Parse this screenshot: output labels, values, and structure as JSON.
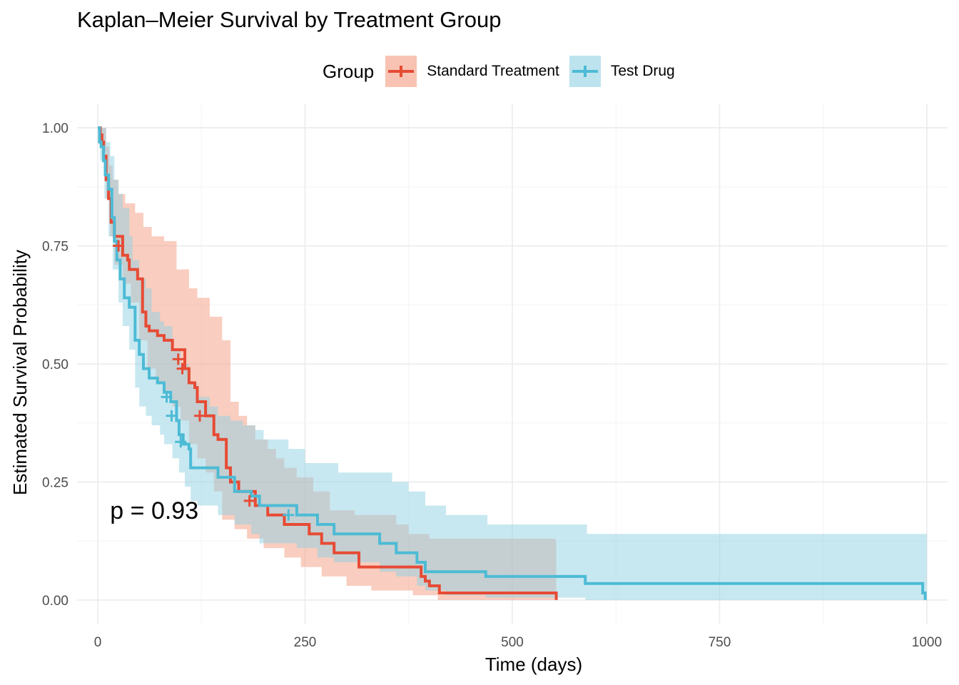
{
  "chart_data": {
    "type": "line",
    "subtype": "kaplan-meier step curves with confidence bands",
    "title": "Kaplan–Meier Survival by Treatment Group",
    "xlabel": "Time (days)",
    "ylabel": "Estimated Survival Probability",
    "xlim": [
      -25,
      1025
    ],
    "ylim": [
      -0.05,
      1.05
    ],
    "x_ticks": [
      0,
      250,
      500,
      750,
      1000
    ],
    "x_tick_labels": [
      "0",
      "250",
      "500",
      "750",
      "1000"
    ],
    "y_ticks": [
      0,
      0.25,
      0.5,
      0.75,
      1
    ],
    "y_tick_labels": [
      "0.00",
      "0.25",
      "0.50",
      "0.75",
      "1.00"
    ],
    "grid": true,
    "legend": {
      "title": "Group",
      "position": "top"
    },
    "annotation": {
      "text": "p = 0.93",
      "x": 20,
      "y": 0.19
    },
    "series": [
      {
        "name": "Standard Treatment",
        "color": "#E64B35",
        "band_color": "#F39B7F",
        "steps": [
          [
            0,
            1.0
          ],
          [
            3,
            0.985
          ],
          [
            5,
            0.97
          ],
          [
            7,
            0.94
          ],
          [
            10,
            0.89
          ],
          [
            13,
            0.85
          ],
          [
            16,
            0.8
          ],
          [
            20,
            0.77
          ],
          [
            30,
            0.73
          ],
          [
            36,
            0.72
          ],
          [
            38,
            0.7
          ],
          [
            48,
            0.68
          ],
          [
            54,
            0.61
          ],
          [
            58,
            0.58
          ],
          [
            62,
            0.57
          ],
          [
            72,
            0.56
          ],
          [
            80,
            0.55
          ],
          [
            90,
            0.53
          ],
          [
            105,
            0.49
          ],
          [
            110,
            0.46
          ],
          [
            117,
            0.45
          ],
          [
            120,
            0.42
          ],
          [
            130,
            0.39
          ],
          [
            140,
            0.35
          ],
          [
            145,
            0.34
          ],
          [
            155,
            0.28
          ],
          [
            160,
            0.25
          ],
          [
            170,
            0.23
          ],
          [
            190,
            0.2
          ],
          [
            205,
            0.18
          ],
          [
            225,
            0.16
          ],
          [
            255,
            0.14
          ],
          [
            270,
            0.12
          ],
          [
            285,
            0.1
          ],
          [
            315,
            0.07
          ],
          [
            390,
            0.05
          ],
          [
            395,
            0.04
          ],
          [
            400,
            0.03
          ],
          [
            412,
            0.015
          ],
          [
            552,
            0.015
          ],
          [
            553,
            0.0
          ]
        ],
        "upper": [
          [
            0,
            1.0
          ],
          [
            5,
            1.0
          ],
          [
            10,
            0.96
          ],
          [
            14,
            0.92
          ],
          [
            18,
            0.89
          ],
          [
            25,
            0.86
          ],
          [
            33,
            0.84
          ],
          [
            45,
            0.82
          ],
          [
            55,
            0.79
          ],
          [
            65,
            0.77
          ],
          [
            80,
            0.76
          ],
          [
            95,
            0.7
          ],
          [
            110,
            0.66
          ],
          [
            120,
            0.64
          ],
          [
            135,
            0.6
          ],
          [
            150,
            0.55
          ],
          [
            160,
            0.42
          ],
          [
            170,
            0.39
          ],
          [
            180,
            0.37
          ],
          [
            190,
            0.34
          ],
          [
            205,
            0.32
          ],
          [
            215,
            0.3
          ],
          [
            225,
            0.28
          ],
          [
            240,
            0.26
          ],
          [
            260,
            0.23
          ],
          [
            280,
            0.19
          ],
          [
            310,
            0.18
          ],
          [
            360,
            0.16
          ],
          [
            375,
            0.14
          ],
          [
            400,
            0.13
          ],
          [
            552,
            0.125
          ],
          [
            553,
            0.0
          ]
        ],
        "lower": [
          [
            0,
            1.0
          ],
          [
            5,
            0.95
          ],
          [
            10,
            0.85
          ],
          [
            15,
            0.77
          ],
          [
            20,
            0.71
          ],
          [
            30,
            0.67
          ],
          [
            40,
            0.63
          ],
          [
            50,
            0.55
          ],
          [
            60,
            0.49
          ],
          [
            70,
            0.46
          ],
          [
            80,
            0.44
          ],
          [
            90,
            0.41
          ],
          [
            100,
            0.38
          ],
          [
            110,
            0.33
          ],
          [
            120,
            0.3
          ],
          [
            130,
            0.27
          ],
          [
            140,
            0.23
          ],
          [
            150,
            0.17
          ],
          [
            165,
            0.15
          ],
          [
            180,
            0.13
          ],
          [
            200,
            0.11
          ],
          [
            225,
            0.09
          ],
          [
            245,
            0.07
          ],
          [
            270,
            0.05
          ],
          [
            300,
            0.03
          ],
          [
            330,
            0.02
          ],
          [
            380,
            0.01
          ],
          [
            410,
            0.0
          ],
          [
            552,
            0.0
          ]
        ],
        "censored": [
          [
            25,
            0.75
          ],
          [
            97,
            0.51
          ],
          [
            102,
            0.49
          ],
          [
            123,
            0.39
          ],
          [
            183,
            0.21
          ]
        ]
      },
      {
        "name": "Test Drug",
        "color": "#4DBBD5",
        "band_color": "#91D1E3",
        "steps": [
          [
            0,
            1.0
          ],
          [
            2,
            0.97
          ],
          [
            4,
            0.96
          ],
          [
            7,
            0.93
          ],
          [
            9,
            0.9
          ],
          [
            13,
            0.87
          ],
          [
            17,
            0.81
          ],
          [
            20,
            0.76
          ],
          [
            23,
            0.72
          ],
          [
            27,
            0.68
          ],
          [
            32,
            0.64
          ],
          [
            38,
            0.62
          ],
          [
            45,
            0.55
          ],
          [
            50,
            0.52
          ],
          [
            55,
            0.49
          ],
          [
            62,
            0.47
          ],
          [
            72,
            0.46
          ],
          [
            80,
            0.44
          ],
          [
            88,
            0.42
          ],
          [
            95,
            0.38
          ],
          [
            98,
            0.35
          ],
          [
            103,
            0.33
          ],
          [
            110,
            0.32
          ],
          [
            112,
            0.28
          ],
          [
            130,
            0.28
          ],
          [
            145,
            0.26
          ],
          [
            165,
            0.23
          ],
          [
            185,
            0.22
          ],
          [
            195,
            0.2
          ],
          [
            240,
            0.18
          ],
          [
            265,
            0.16
          ],
          [
            285,
            0.14
          ],
          [
            340,
            0.12
          ],
          [
            360,
            0.1
          ],
          [
            385,
            0.08
          ],
          [
            395,
            0.06
          ],
          [
            468,
            0.05
          ],
          [
            588,
            0.035
          ],
          [
            990,
            0.035
          ],
          [
            995,
            0.015
          ],
          [
            998,
            0.0
          ]
        ],
        "upper": [
          [
            0,
            1.0
          ],
          [
            5,
            1.0
          ],
          [
            10,
            0.97
          ],
          [
            15,
            0.94
          ],
          [
            20,
            0.89
          ],
          [
            25,
            0.86
          ],
          [
            30,
            0.83
          ],
          [
            38,
            0.77
          ],
          [
            42,
            0.72
          ],
          [
            50,
            0.68
          ],
          [
            58,
            0.66
          ],
          [
            65,
            0.61
          ],
          [
            75,
            0.59
          ],
          [
            80,
            0.58
          ],
          [
            90,
            0.53
          ],
          [
            100,
            0.5
          ],
          [
            110,
            0.46
          ],
          [
            120,
            0.43
          ],
          [
            135,
            0.41
          ],
          [
            145,
            0.39
          ],
          [
            160,
            0.38
          ],
          [
            175,
            0.37
          ],
          [
            190,
            0.36
          ],
          [
            200,
            0.34
          ],
          [
            230,
            0.32
          ],
          [
            250,
            0.29
          ],
          [
            290,
            0.27
          ],
          [
            355,
            0.25
          ],
          [
            375,
            0.23
          ],
          [
            395,
            0.2
          ],
          [
            420,
            0.18
          ],
          [
            470,
            0.16
          ],
          [
            590,
            0.14
          ],
          [
            1000,
            0.14
          ]
        ],
        "lower": [
          [
            0,
            1.0
          ],
          [
            3,
            0.93
          ],
          [
            8,
            0.85
          ],
          [
            13,
            0.77
          ],
          [
            18,
            0.7
          ],
          [
            25,
            0.63
          ],
          [
            30,
            0.58
          ],
          [
            38,
            0.53
          ],
          [
            45,
            0.45
          ],
          [
            50,
            0.41
          ],
          [
            58,
            0.39
          ],
          [
            65,
            0.37
          ],
          [
            75,
            0.35
          ],
          [
            80,
            0.33
          ],
          [
            90,
            0.3
          ],
          [
            98,
            0.27
          ],
          [
            105,
            0.24
          ],
          [
            112,
            0.21
          ],
          [
            120,
            0.2
          ],
          [
            145,
            0.18
          ],
          [
            165,
            0.16
          ],
          [
            185,
            0.14
          ],
          [
            195,
            0.12
          ],
          [
            240,
            0.11
          ],
          [
            265,
            0.09
          ],
          [
            285,
            0.08
          ],
          [
            340,
            0.06
          ],
          [
            360,
            0.05
          ],
          [
            385,
            0.03
          ],
          [
            395,
            0.02
          ],
          [
            420,
            0.01
          ],
          [
            468,
            0.005
          ],
          [
            588,
            0.0
          ],
          [
            1000,
            0.0
          ]
        ],
        "censored": [
          [
            83,
            0.43
          ],
          [
            89,
            0.39
          ],
          [
            100,
            0.335
          ],
          [
            230,
            0.18
          ]
        ]
      }
    ]
  }
}
